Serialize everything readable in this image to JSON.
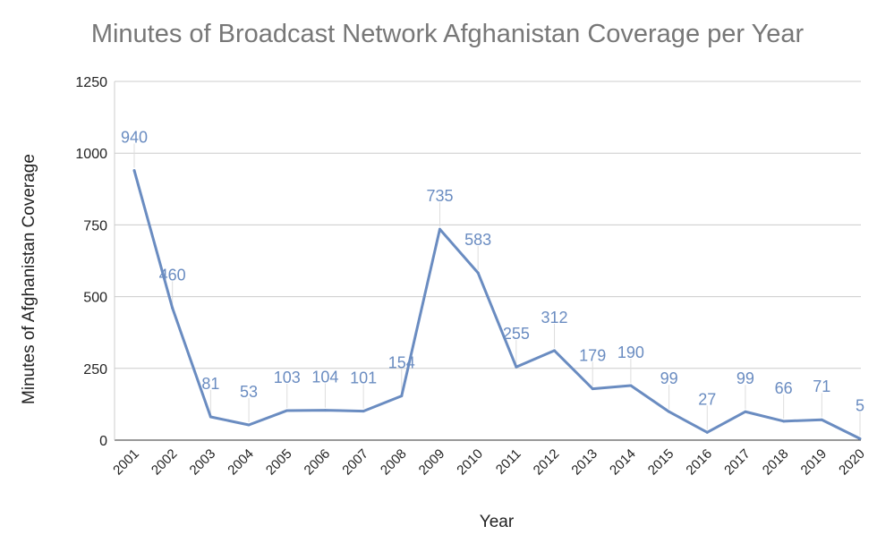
{
  "chart_data": {
    "type": "line",
    "title": "Minutes of Broadcast Network Afghanistan Coverage per Year",
    "xlabel": "Year",
    "ylabel": "Minutes of Afghanistan Coverage",
    "categories": [
      "2001",
      "2002",
      "2003",
      "2004",
      "2005",
      "2006",
      "2007",
      "2008",
      "2009",
      "2010",
      "2011",
      "2012",
      "2013",
      "2014",
      "2015",
      "2016",
      "2017",
      "2018",
      "2019",
      "2020"
    ],
    "values": [
      940,
      460,
      81,
      53,
      103,
      104,
      101,
      154,
      735,
      583,
      255,
      312,
      179,
      190,
      99,
      27,
      99,
      66,
      71,
      5
    ],
    "ylim": [
      0,
      1250
    ],
    "yticks": [
      0,
      250,
      500,
      750,
      1000,
      1250
    ],
    "grid": true,
    "data_labels": true,
    "legend": "none",
    "line_color": "#6a8cc1",
    "label_color": "#6a8cc1"
  }
}
